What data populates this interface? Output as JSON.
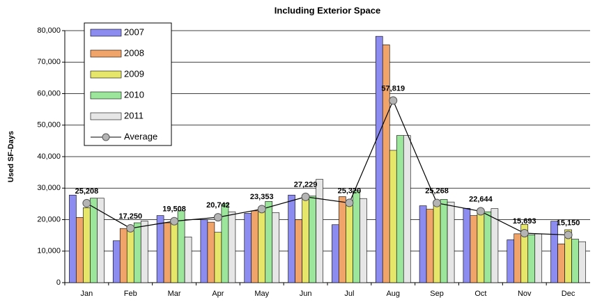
{
  "chart_data": {
    "type": "bar",
    "title": "Including Exterior Space",
    "y_label": "Used SF-Days",
    "categories": [
      "Jan",
      "Feb",
      "Mar",
      "Apr",
      "May",
      "Jun",
      "Jul",
      "Aug",
      "Sep",
      "Oct",
      "Nov",
      "Dec"
    ],
    "series": [
      {
        "name": "2007",
        "color": "#8c8cf0",
        "values": [
          27800,
          13300,
          21300,
          20000,
          22000,
          27800,
          18400,
          78200,
          24400,
          23600,
          13600,
          19500
        ]
      },
      {
        "name": "2008",
        "color": "#f0a46a",
        "values": [
          20700,
          17200,
          19000,
          19200,
          22800,
          20000,
          27300,
          75500,
          23300,
          21300,
          15500,
          12300
        ]
      },
      {
        "name": "2009",
        "color": "#e6e66a",
        "values": [
          23800,
          17300,
          20000,
          16000,
          23000,
          27000,
          25300,
          42000,
          25700,
          22200,
          18500,
          16800
        ]
      },
      {
        "name": "2010",
        "color": "#9ce69c",
        "values": [
          26800,
          19000,
          22800,
          25000,
          25800,
          27500,
          29200,
          46700,
          26400,
          22500,
          15200,
          13800
        ]
      },
      {
        "name": "2011",
        "color": "#e6e6e6",
        "values": [
          26800,
          19600,
          14500,
          22500,
          22200,
          32800,
          26700,
          46700,
          25600,
          23500,
          15500,
          13000
        ]
      },
      {
        "name": "Average",
        "type": "line",
        "color": "#000000",
        "marker_color": "#b4b4b4",
        "values": [
          25208,
          17250,
          19508,
          20742,
          23353,
          27229,
          25320,
          57819,
          25268,
          22644,
          15693,
          15150
        ],
        "value_labels": [
          "25,208",
          "17,250",
          "19,508",
          "20,742",
          "23,353",
          "27,229",
          "25,320",
          "57,819",
          "25,268",
          "22,644",
          "15,693",
          "15,150"
        ]
      }
    ],
    "ylim": [
      0,
      80000
    ],
    "yticks": [
      0,
      {
        "value": 10000,
        "label": "10,000"
      },
      {
        "value": 20000,
        "label": "20,000"
      },
      {
        "value": 30000,
        "label": "30,000"
      },
      {
        "value": 40000,
        "label": "40,000"
      },
      {
        "value": 50000,
        "label": "50,000"
      },
      {
        "value": 60000,
        "label": "60,000"
      },
      {
        "value": 70000,
        "label": "70,000"
      },
      {
        "value": 80000,
        "label": "80,000"
      }
    ],
    "grid": true,
    "legend": "upper left"
  }
}
